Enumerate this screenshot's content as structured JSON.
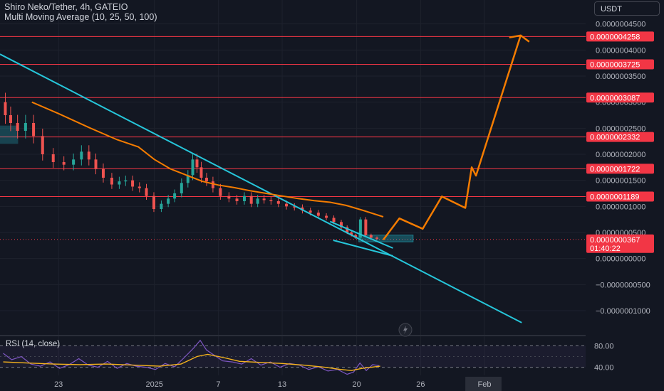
{
  "header": {
    "symbol_line": "Shiro Neko/Tether, 4h, GATEIO",
    "indicator_line": "Multi Moving Average (10, 25, 50, 100)"
  },
  "currency_button": "USDT",
  "colors": {
    "background": "#131722",
    "resistance_line": "#f23645",
    "trend_line": "#26c6da",
    "moving_average": "#f57c00",
    "projection": "#f57c00",
    "candle_up": "#26a69a",
    "candle_down": "#ef5350",
    "rsi_line": "#7e57c2",
    "rsi_signal": "#f5b31d"
  },
  "chart_data": [
    {
      "type": "line",
      "title": "Shiro Neko/Tether, 4h, GATEIO",
      "y_axis_ticks": [
        "0.0000004500",
        "0.0000004000",
        "0.0000003500",
        "0.0000003000",
        "0.0000002500",
        "0.0000002000",
        "0.0000001500",
        "0.0000001000",
        "0.0000000500",
        "0.0000000000",
        "−0.0000000500",
        "−0.0000001000"
      ],
      "y_axis_values": [
        4.5e-07,
        4e-07,
        3.5e-07,
        3e-07,
        2.5e-07,
        2e-07,
        1.5e-07,
        1e-07,
        5e-08,
        0,
        -5e-08,
        -1e-07
      ],
      "ylim": [
        -1.45e-07,
        4.55e-07
      ],
      "x_axis_ticks": [
        "23",
        "2025",
        "7",
        "13",
        "20",
        "26",
        "Feb"
      ],
      "x_axis_days": [
        23,
        32,
        38,
        44,
        51,
        57,
        63
      ],
      "xlim": [
        17.5,
        72.5
      ],
      "x_unit": "days from 1 Dec 2024",
      "price_levels": [
        "0.0000004258",
        "0.0000003725",
        "0.0000003087",
        "0.0000002332",
        "0.0000001722",
        "0.0000001189"
      ],
      "price_level_values": [
        4.258e-07,
        3.725e-07,
        3.087e-07,
        2.332e-07,
        1.722e-07,
        1.189e-07
      ],
      "current_price": "0.0000000367",
      "current_price_value": 3.67e-08,
      "countdown": "01:40:22",
      "price_series": {
        "x": [
          17.8,
          18.2,
          18.8,
          19.5,
          20.3,
          21,
          22,
          23,
          24,
          24.8,
          25.5,
          26.2,
          26.8,
          27.6,
          28.4,
          29,
          29.6,
          30.3,
          30.9,
          31.6,
          32.3,
          33,
          33.6,
          34.2,
          34.9,
          35.4,
          35.8,
          36.2,
          36.6,
          37.2,
          37.8,
          38.6,
          39.4,
          40.1,
          40.8,
          41.4,
          42,
          42.6,
          43.3,
          44,
          44.8,
          45.5,
          46.3,
          47,
          47.8,
          48.5,
          49.2,
          49.9,
          50.3,
          50.7,
          51.1,
          51.6,
          52.1,
          52.6,
          53.2
        ],
        "y": [
          3e-07,
          2.75e-07,
          2.6e-07,
          2.45e-07,
          2.6e-07,
          2.35e-07,
          2e-07,
          1.85e-07,
          1.8e-07,
          1.9e-07,
          2.05e-07,
          1.9e-07,
          1.72e-07,
          1.55e-07,
          1.42e-07,
          1.48e-07,
          1.5e-07,
          1.38e-07,
          1.35e-07,
          1.2e-07,
          9.5e-08,
          1.05e-07,
          1.15e-07,
          1.25e-07,
          1.45e-07,
          1.6e-07,
          1.9e-07,
          1.75e-07,
          1.55e-07,
          1.48e-07,
          1.35e-07,
          1.2e-07,
          1.15e-07,
          1.1e-07,
          1.2e-07,
          1.05e-07,
          1.15e-07,
          1.12e-07,
          1.1e-07,
          1.05e-07,
          1e-07,
          9.8e-08,
          9.2e-08,
          8.8e-08,
          8.2e-08,
          7.8e-08,
          7e-08,
          6e-08,
          5e-08,
          4.5e-08,
          4e-08,
          7.5e-08,
          4.5e-08,
          4e-08,
          3.8e-08
        ]
      },
      "moving_average": {
        "x": [
          20.5,
          23,
          26,
          28.5,
          30.5,
          32,
          33.5,
          35,
          36.5,
          38,
          39.5,
          41,
          42.5,
          44,
          45.5,
          47,
          48.5,
          50,
          51.5,
          53.5
        ],
        "y": [
          3e-07,
          2.78e-07,
          2.5e-07,
          2.28e-07,
          2.14e-07,
          1.9e-07,
          1.72e-07,
          1.6e-07,
          1.48e-07,
          1.41e-07,
          1.36e-07,
          1.3e-07,
          1.25e-07,
          1.2e-07,
          1.15e-07,
          1.11e-07,
          1.08e-07,
          1.02e-07,
          9.3e-08,
          8e-08
        ]
      },
      "trend_lines": [
        {
          "x": [
            17.5,
            66.5
          ],
          "y": [
            3.92e-07,
            -1.23e-07
          ]
        },
        {
          "x": [
            48.8,
            54.4
          ],
          "y": [
            3.5e-08,
            5e-09
          ]
        },
        {
          "x": [
            48.5,
            54.4
          ],
          "y": [
            7.1e-08,
            2e-08
          ]
        }
      ],
      "projection": {
        "x": [
          53.5,
          55.0,
          57.2,
          59.0,
          61.2,
          61.8,
          62.2,
          66.4
        ],
        "y": [
          3.6e-08,
          7.7e-08,
          5.7e-08,
          1.19e-07,
          9.7e-08,
          1.75e-07,
          1.59e-07,
          4.28e-07
        ]
      }
    },
    {
      "type": "line",
      "title": "RSI (14, close)",
      "y_axis_ticks": [
        "80.00",
        "40.00"
      ],
      "y_axis_values": [
        80,
        40
      ],
      "ylim": [
        25,
        95
      ],
      "xlim": [
        17.5,
        72.5
      ],
      "rsi": {
        "x": [
          17.8,
          18.6,
          19.5,
          20.4,
          21.3,
          22.2,
          23.1,
          24,
          24.9,
          25.8,
          26.7,
          27.6,
          28.5,
          29.4,
          30.3,
          31.2,
          32.1,
          33,
          33.9,
          34.8,
          35.7,
          36.3,
          36.9,
          37.5,
          38.4,
          39.3,
          40.2,
          41.1,
          42,
          42.9,
          43.8,
          44.7,
          45.6,
          46.5,
          47.4,
          48.3,
          49.2,
          50.1,
          50.7,
          51.3,
          51.9,
          52.5,
          53.1
        ],
        "y": [
          66,
          54,
          60,
          46,
          42,
          50,
          38,
          45,
          56,
          44,
          40,
          51,
          38,
          47,
          42,
          40,
          36,
          47,
          41,
          58,
          76,
          90,
          72,
          64,
          52,
          50,
          46,
          56,
          44,
          50,
          40,
          47,
          44,
          36,
          41,
          33,
          36,
          27,
          31,
          48,
          34,
          45,
          43
        ]
      },
      "rsi_signal": {
        "x": [
          17.8,
          20,
          22.5,
          25,
          27.5,
          30,
          32.5,
          34.5,
          36,
          37,
          38.5,
          40,
          42,
          44,
          46,
          48,
          49.5,
          50.5,
          51.5,
          53.2
        ],
        "y": [
          50,
          48,
          46,
          45,
          46,
          44,
          42,
          46,
          60,
          64,
          58,
          51,
          49,
          47,
          44,
          40,
          36,
          34,
          38,
          42
        ]
      }
    }
  ]
}
